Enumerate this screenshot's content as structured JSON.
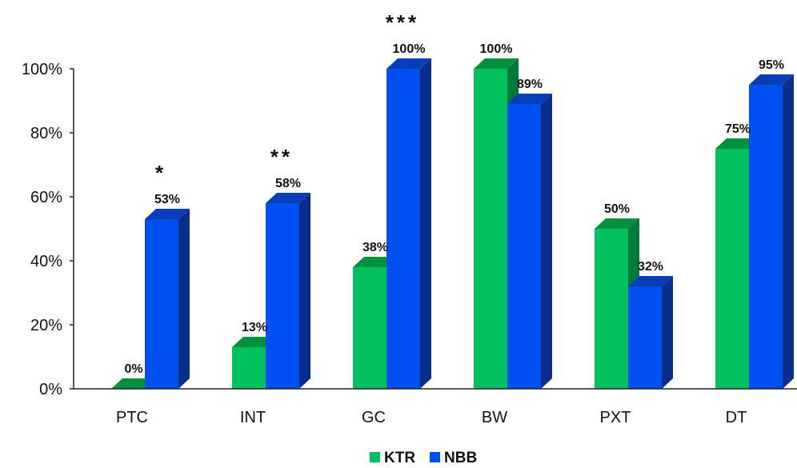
{
  "chart_data": {
    "type": "bar",
    "categories": [
      "PTC",
      "INT",
      "GC",
      "BW",
      "PXT",
      "DT"
    ],
    "series": [
      {
        "name": "KTR",
        "values": [
          0,
          13,
          38,
          100,
          50,
          75
        ],
        "labels": [
          "0%",
          "13%",
          "38%",
          "100%",
          "50%",
          "75%"
        ]
      },
      {
        "name": "NBB",
        "values": [
          53,
          58,
          100,
          89,
          32,
          95
        ],
        "labels": [
          "53%",
          "58%",
          "100%",
          "89%",
          "32%",
          "95%"
        ]
      }
    ],
    "significance": [
      "*",
      "**",
      "***",
      "",
      "",
      ""
    ],
    "yticks": [
      "0%",
      "20%",
      "40%",
      "60%",
      "80%",
      "100%"
    ],
    "ylim": [
      0,
      100
    ],
    "legend_position": "bottom",
    "colors": {
      "KTR_front": "#00c060",
      "KTR_side": "#007a3a",
      "KTR_top": "#00913f",
      "NBB_front": "#0050f0",
      "NBB_side": "#0a2e8a",
      "NBB_top": "#0a3db8"
    }
  }
}
